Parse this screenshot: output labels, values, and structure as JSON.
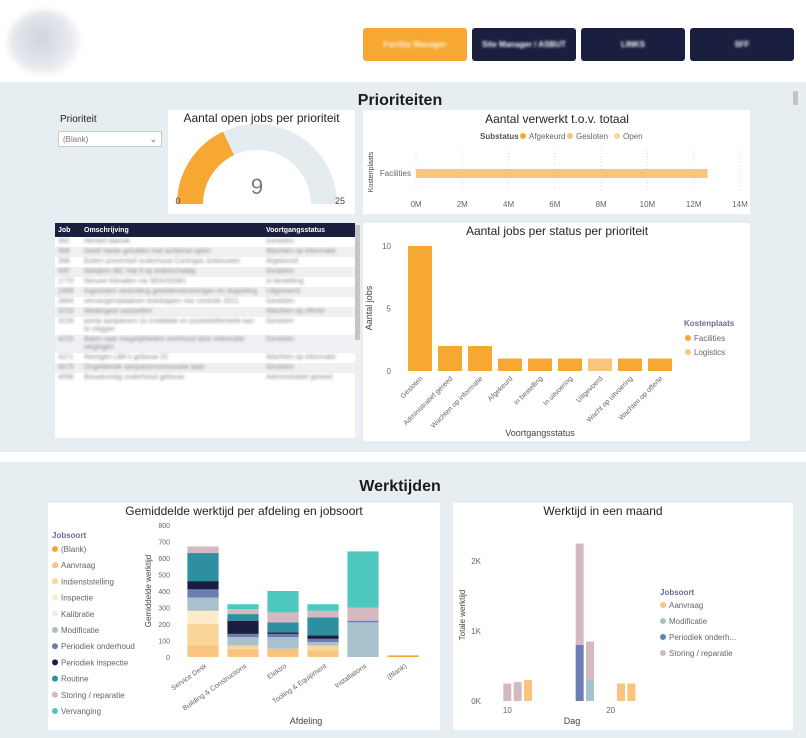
{
  "header": {
    "buttons": [
      {
        "label": "Facility Manager"
      },
      {
        "label": "Site Manager / ASBUT"
      },
      {
        "label": "LINKS"
      },
      {
        "label": "SFF"
      }
    ]
  },
  "colors": {
    "orange": "#F7A833",
    "lightorange": "#F9C57E",
    "navy": "#1A1E3F",
    "teal": "#2E8FA0",
    "mint": "#4EC8BE"
  },
  "prioriteiten": {
    "title": "Prioriteiten",
    "slicer": {
      "label": "Prioriteit",
      "value": "(Blank)"
    },
    "gauge": {
      "title": "Aantal open jobs per prioriteit",
      "min": 0,
      "max": 25,
      "value": 9,
      "min_label": "0",
      "max_label": "25",
      "value_label": "9"
    },
    "table": {
      "columns": [
        "Job",
        "Omschrijving",
        "Voortgangsstatus"
      ],
      "rows": [
        {
          "job": "392",
          "desc": "Herstel dakluik",
          "status": "Gesloten"
        },
        {
          "job": "588",
          "desc": "Geeft harde geluiden met achteruit rijden",
          "status": "Wachten op informatie"
        },
        {
          "job": "398",
          "desc": "Extern preventief onderhoud Contrigas Gebouwen",
          "status": "Afgekeurd"
        },
        {
          "job": "830",
          "desc": "Nakijken WC Hal 9 op lesbeschadig",
          "status": "Gesloten"
        },
        {
          "job": "1770",
          "desc": "Nieuwe Klimaten via SER/OSW1",
          "status": "In bestelling"
        },
        {
          "job": "2489",
          "desc": "Ingestoten verlichting gewelenverstrengen en doppeling",
          "status": "Uitgevoerd"
        },
        {
          "job": "3894",
          "desc": "vervangen/plaatsen leanloppen nav controle 2021",
          "status": "Gesloten"
        },
        {
          "job": "3219",
          "desc": "Wedergeut vastzetten",
          "status": "Wachten op offerte"
        },
        {
          "job": "3239",
          "desc": "pomp aanpassen zo installatie en pusteldoftenkele kan te zeggen",
          "status": "Gesloten"
        },
        {
          "job": "4215",
          "desc": "Bijten naar mogelijkheden overhoud door inflexcible wegingen",
          "status": "Gesloten"
        },
        {
          "job": "4371",
          "desc": "Reinigen LBK's gebouw 20",
          "status": "Wachten op informatie"
        },
        {
          "job": "4675",
          "desc": "Ongeldende aanpassen/renovatie bato",
          "status": "Gesloten"
        },
        {
          "job": "4598",
          "desc": "Bouwkundig onderhoud gebouw",
          "status": "Administratief gereed"
        }
      ]
    }
  },
  "werktijden": {
    "title": "Werktijden"
  },
  "chart_data": [
    {
      "id": "verwerkt",
      "type": "bar",
      "orientation": "horizontal",
      "title": "Aantal verwerkt t.o.v. totaal",
      "legend_title": "Substatus",
      "legend": [
        {
          "name": "Afgekeurd",
          "color": "#F7A833"
        },
        {
          "name": "Gesloten",
          "color": "#F9C57E"
        },
        {
          "name": "Open",
          "color": "#FBD69A"
        }
      ],
      "ylabel": "Kostenplaats",
      "categories": [
        "Facilities"
      ],
      "values": [
        12.6
      ],
      "xlim": [
        0,
        14
      ],
      "xticks": [
        "0M",
        "2M",
        "4M",
        "6M",
        "8M",
        "10M",
        "12M",
        "14M"
      ]
    },
    {
      "id": "status",
      "type": "bar",
      "title": "Aantal jobs per status per prioriteit",
      "xlabel": "Voortgangsstatus",
      "ylabel": "Aantal jobs",
      "ylim": [
        0,
        10
      ],
      "yticks": [
        0,
        5,
        10
      ],
      "legend_title": "Kostenplaats",
      "legend": [
        {
          "name": "Facilities",
          "color": "#F7A833"
        },
        {
          "name": "Logistics",
          "color": "#F9C57E"
        }
      ],
      "categories": [
        "Gesloten",
        "Administratief gereed",
        "Wachten op informatie",
        "Afgekeurd",
        "In bestelling",
        "In uitvoering",
        "Uitgevoerd",
        "Wacht op uitvoering",
        "Wachten op offerte"
      ],
      "values": [
        10,
        2,
        2,
        1,
        1,
        1,
        1,
        1,
        1
      ],
      "series_of_bar": [
        "Facilities",
        "Facilities",
        "Facilities",
        "Facilities",
        "Facilities",
        "Facilities",
        "Logistics",
        "Facilities",
        "Facilities"
      ]
    },
    {
      "id": "afdeling",
      "type": "bar",
      "stacked": true,
      "title": "Gemiddelde werktijd per afdeling en jobsoort",
      "xlabel": "Afdeling",
      "ylabel": "Gemiddelde werktijd",
      "ylim": [
        0,
        800
      ],
      "yticks": [
        0,
        100,
        200,
        300,
        400,
        500,
        600,
        700,
        800
      ],
      "legend_title": "Jobsoort",
      "categories": [
        "Service Desk",
        "Building & Constructions",
        "Elektro",
        "Tooling & Equipment",
        "Installations",
        "(Blank)"
      ],
      "series": [
        {
          "name": "(Blank)",
          "color": "#F7A833",
          "values": [
            0,
            0,
            0,
            0,
            0,
            10
          ]
        },
        {
          "name": "Aanvraag",
          "color": "#F9C57E",
          "values": [
            70,
            50,
            50,
            40,
            0,
            0
          ]
        },
        {
          "name": "Indienststelling",
          "color": "#FBD69A",
          "values": [
            130,
            20,
            0,
            30,
            0,
            0
          ]
        },
        {
          "name": "Inspectie",
          "color": "#FCEBCB",
          "values": [
            80,
            0,
            0,
            0,
            0,
            0
          ]
        },
        {
          "name": "Kalibratie",
          "color": "#E6EEF1",
          "values": [
            0,
            0,
            0,
            0,
            0,
            0
          ]
        },
        {
          "name": "Modificatie",
          "color": "#A9C1CD",
          "values": [
            80,
            50,
            70,
            20,
            210,
            0
          ]
        },
        {
          "name": "Periodiek onderhoud",
          "color": "#6C7DB4",
          "values": [
            50,
            20,
            20,
            20,
            10,
            0
          ]
        },
        {
          "name": "Periodiek inspectie",
          "color": "#1A1E3F",
          "values": [
            50,
            80,
            10,
            20,
            0,
            0
          ]
        },
        {
          "name": "Routine",
          "color": "#2E8FA0",
          "values": [
            170,
            40,
            60,
            110,
            0,
            0
          ]
        },
        {
          "name": "Storing / reparatie",
          "color": "#D5B9C0",
          "values": [
            40,
            30,
            60,
            40,
            80,
            0
          ]
        },
        {
          "name": "Vervanging",
          "color": "#4EC8BE",
          "values": [
            0,
            30,
            130,
            40,
            340,
            0
          ]
        }
      ]
    },
    {
      "id": "maand",
      "type": "bar",
      "stacked": true,
      "title": "Werktijd in een maand",
      "xlabel": "Dag",
      "ylabel": "Totale werktijd",
      "ylim": [
        0,
        2400
      ],
      "yticks": [
        "0K",
        "1K",
        "2K"
      ],
      "xticks": [
        "10",
        "20"
      ],
      "legend_title": "Jobsoort",
      "legend": [
        {
          "name": "Aanvraag",
          "color": "#F9C57E"
        },
        {
          "name": "Modificatie",
          "color": "#A9C1CD"
        },
        {
          "name": "Periodiek onderh...",
          "color": "#6C7DB4"
        },
        {
          "name": "Storing / reparatie",
          "color": "#D5B9C0"
        }
      ],
      "days": [
        10,
        11,
        12,
        17,
        18,
        21,
        22
      ],
      "series": [
        {
          "name": "Aanvraag",
          "color": "#F9C57E",
          "values": [
            0,
            0,
            300,
            0,
            0,
            250,
            250
          ]
        },
        {
          "name": "Modificatie",
          "color": "#A9C1CD",
          "values": [
            0,
            0,
            0,
            0,
            300,
            0,
            0
          ]
        },
        {
          "name": "Periodiek onderh...",
          "color": "#6C7DB4",
          "values": [
            0,
            0,
            0,
            800,
            0,
            0,
            0
          ]
        },
        {
          "name": "Storing / reparatie",
          "color": "#D5B9C0",
          "values": [
            250,
            270,
            0,
            1450,
            550,
            0,
            0
          ]
        }
      ]
    }
  ]
}
